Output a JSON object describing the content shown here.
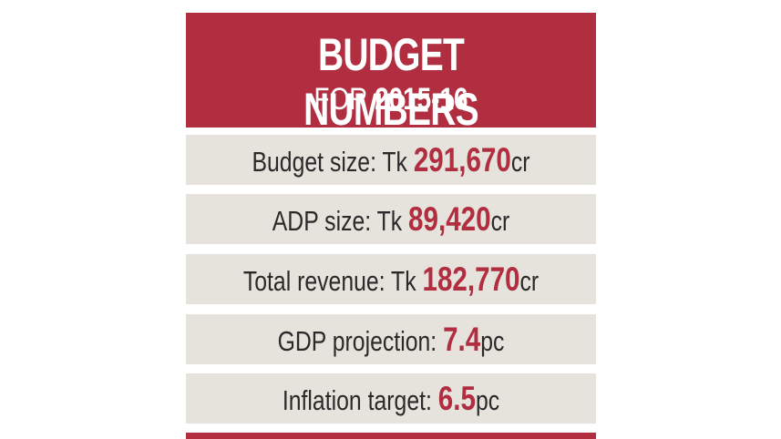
{
  "header": {
    "title": "BUDGET NUMBERS",
    "subtitle_prefix": "FOR ",
    "subtitle_year": "2015-16"
  },
  "rows": [
    {
      "label": "Budget size: Tk ",
      "value": "291,670",
      "unit": "cr"
    },
    {
      "label": "ADP size: Tk ",
      "value": "89,420",
      "unit": "cr"
    },
    {
      "label": "Total revenue: Tk ",
      "value": "182,770",
      "unit": "cr"
    },
    {
      "label": "GDP projection: ",
      "value": "7.4",
      "unit": "pc"
    },
    {
      "label": "Inflation target: ",
      "value": "6.5",
      "unit": "pc"
    }
  ],
  "colors": {
    "accent": "#b02e40",
    "row_background": "#e5e3dc",
    "text": "#2a2a2a"
  }
}
